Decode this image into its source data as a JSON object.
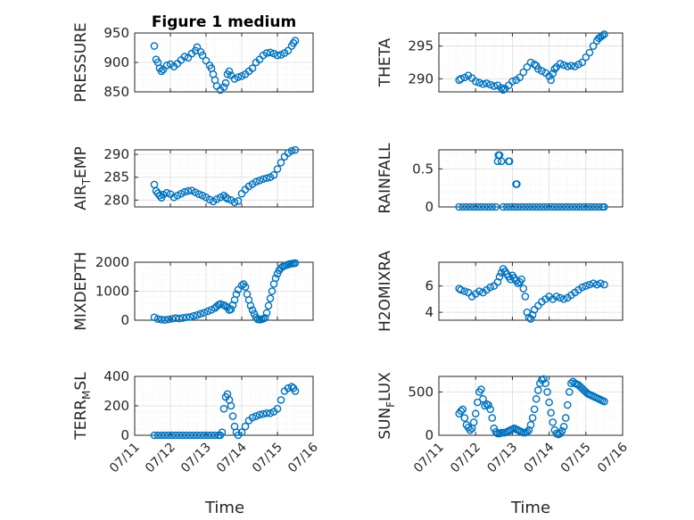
{
  "figure": {
    "title": "Figure 1 medium",
    "marker_color": "#0072BD",
    "x_tick_labels": [
      "07/11",
      "07/12",
      "07/13",
      "07/14",
      "07/15",
      "07/16"
    ],
    "xlabel": "Time"
  },
  "chart_data": [
    {
      "type": "scatter",
      "id": "pressure",
      "title": "Figure 1 medium",
      "ylabel": "PRESSURE",
      "ylim": [
        850,
        950
      ],
      "yticks": [
        850,
        900,
        950
      ],
      "xlim": [
        "07/11",
        "07/16"
      ],
      "grid": true,
      "series": [
        {
          "x": [
            11.55,
            11.6,
            11.65,
            11.7,
            11.75,
            11.8,
            11.9,
            12.0,
            12.1,
            12.2,
            12.3,
            12.4,
            12.5,
            12.6,
            12.7,
            12.75,
            12.85,
            12.9,
            13.0,
            13.1,
            13.15,
            13.2,
            13.25,
            13.3,
            13.4,
            13.5,
            13.55,
            13.6,
            13.65,
            13.7,
            13.8,
            13.9,
            14.0,
            14.1,
            14.2,
            14.3,
            14.4,
            14.5,
            14.6,
            14.7,
            14.8,
            14.9,
            15.0,
            15.1,
            15.2,
            15.3,
            15.4,
            15.45,
            15.5
          ],
          "y": [
            928,
            905,
            900,
            890,
            885,
            888,
            895,
            897,
            893,
            898,
            904,
            910,
            908,
            915,
            920,
            926,
            918,
            912,
            903,
            895,
            890,
            880,
            870,
            860,
            853,
            858,
            865,
            880,
            885,
            878,
            872,
            875,
            877,
            880,
            885,
            890,
            900,
            905,
            912,
            916,
            917,
            915,
            912,
            913,
            916,
            920,
            928,
            933,
            937
          ]
        }
      ]
    },
    {
      "type": "scatter",
      "id": "theta",
      "ylabel": "THETA",
      "ylim": [
        288,
        297
      ],
      "yticks": [
        290,
        295
      ],
      "xlim": [
        "07/11",
        "07/16"
      ],
      "grid": true,
      "series": [
        {
          "x": [
            11.55,
            11.6,
            11.7,
            11.8,
            11.9,
            12.0,
            12.1,
            12.2,
            12.3,
            12.4,
            12.5,
            12.6,
            12.7,
            12.75,
            12.8,
            12.9,
            13.0,
            13.1,
            13.2,
            13.3,
            13.4,
            13.5,
            13.6,
            13.65,
            13.7,
            13.8,
            13.9,
            14.0,
            14.05,
            14.1,
            14.15,
            14.2,
            14.3,
            14.4,
            14.5,
            14.6,
            14.7,
            14.8,
            14.9,
            15.0,
            15.1,
            15.2,
            15.3,
            15.35,
            15.4,
            15.45,
            15.5
          ],
          "y": [
            289.8,
            290.0,
            290.2,
            290.5,
            290.1,
            289.6,
            289.4,
            289.2,
            289.3,
            289.1,
            288.9,
            289.0,
            288.6,
            288.3,
            288.5,
            289.0,
            289.6,
            289.8,
            290.2,
            291.0,
            291.8,
            292.5,
            292.2,
            292.0,
            291.5,
            291.2,
            290.9,
            290.4,
            289.8,
            290.8,
            291.5,
            291.8,
            292.3,
            292.1,
            291.9,
            292.0,
            291.9,
            292.2,
            292.5,
            293.3,
            294.0,
            295.0,
            295.8,
            296.2,
            296.4,
            296.6,
            296.8
          ]
        }
      ]
    },
    {
      "type": "scatter",
      "id": "air_temp",
      "ylabel": "AIR_TEMP",
      "ylim": [
        278.5,
        291
      ],
      "yticks": [
        280,
        285,
        290
      ],
      "xlim": [
        "07/11",
        "07/16"
      ],
      "grid": true,
      "series": [
        {
          "x": [
            11.55,
            11.6,
            11.65,
            11.7,
            11.75,
            11.8,
            11.9,
            12.0,
            12.1,
            12.2,
            12.3,
            12.4,
            12.5,
            12.6,
            12.7,
            12.8,
            12.9,
            13.0,
            13.1,
            13.2,
            13.3,
            13.4,
            13.5,
            13.55,
            13.6,
            13.7,
            13.8,
            13.9,
            14.0,
            14.1,
            14.2,
            14.3,
            14.4,
            14.5,
            14.6,
            14.7,
            14.8,
            14.9,
            15.0,
            15.1,
            15.2,
            15.3,
            15.4,
            15.5
          ],
          "y": [
            283.4,
            282.0,
            281.5,
            281.0,
            280.5,
            281.2,
            281.6,
            281.3,
            280.6,
            281.0,
            281.4,
            281.8,
            282.0,
            282.1,
            281.7,
            281.3,
            281.0,
            280.6,
            280.1,
            279.7,
            280.2,
            280.6,
            281.0,
            280.6,
            280.3,
            280.0,
            279.5,
            279.8,
            281.4,
            282.3,
            283.0,
            283.5,
            284.0,
            284.3,
            284.6,
            284.8,
            285.0,
            285.5,
            286.8,
            288.2,
            289.5,
            290.3,
            290.8,
            291.0
          ]
        }
      ]
    },
    {
      "type": "scatter",
      "id": "rainfall",
      "ylabel": "RAINFALL",
      "ylim": [
        0,
        0.75
      ],
      "yticks": [
        0,
        0.5
      ],
      "xlim": [
        "07/11",
        "07/16"
      ],
      "grid": true,
      "series": [
        {
          "x": [
            11.55,
            11.65,
            11.75,
            11.85,
            11.95,
            12.05,
            12.15,
            12.25,
            12.35,
            12.45,
            12.55,
            12.6,
            12.62,
            12.65,
            12.7,
            12.75,
            12.85,
            12.9,
            12.92,
            12.95,
            13.05,
            13.1,
            13.12,
            13.15,
            13.25,
            13.35,
            13.45,
            13.55,
            13.65,
            13.75,
            13.85,
            13.95,
            14.05,
            14.15,
            14.25,
            14.35,
            14.45,
            14.55,
            14.65,
            14.75,
            14.85,
            14.95,
            15.05,
            15.15,
            15.25,
            15.35,
            15.45,
            15.5
          ],
          "y": [
            0,
            0,
            0,
            0,
            0,
            0,
            0,
            0,
            0,
            0,
            0,
            0.6,
            0.68,
            0.68,
            0.6,
            0,
            0,
            0.6,
            0.6,
            0,
            0,
            0.3,
            0.3,
            0,
            0,
            0,
            0,
            0,
            0,
            0,
            0,
            0,
            0,
            0,
            0,
            0,
            0,
            0,
            0,
            0,
            0,
            0,
            0,
            0,
            0,
            0,
            0,
            0
          ]
        }
      ]
    },
    {
      "type": "scatter",
      "id": "mixdepth",
      "ylabel": "MIXDEPTH",
      "ylim": [
        0,
        2000
      ],
      "yticks": [
        0,
        1000,
        2000
      ],
      "xlim": [
        "07/11",
        "07/16"
      ],
      "grid": true,
      "series": [
        {
          "x": [
            11.55,
            11.65,
            11.75,
            11.85,
            11.95,
            12.05,
            12.15,
            12.25,
            12.35,
            12.45,
            12.55,
            12.65,
            12.75,
            12.85,
            12.95,
            13.05,
            13.15,
            13.25,
            13.3,
            13.35,
            13.4,
            13.5,
            13.55,
            13.6,
            13.65,
            13.7,
            13.75,
            13.8,
            13.85,
            13.9,
            14.0,
            14.05,
            14.1,
            14.15,
            14.2,
            14.25,
            14.3,
            14.35,
            14.4,
            14.45,
            14.5,
            14.55,
            14.6,
            14.65,
            14.7,
            14.75,
            14.8,
            14.85,
            14.9,
            14.95,
            15.0,
            15.05,
            15.1,
            15.15,
            15.2,
            15.25,
            15.3,
            15.35,
            15.4,
            15.45,
            15.5
          ],
          "y": [
            100,
            40,
            20,
            10,
            30,
            50,
            70,
            60,
            80,
            100,
            110,
            150,
            180,
            220,
            260,
            310,
            360,
            420,
            480,
            530,
            560,
            520,
            480,
            450,
            350,
            380,
            520,
            700,
            900,
            1050,
            1200,
            1250,
            1150,
            900,
            700,
            500,
            350,
            220,
            100,
            30,
            20,
            30,
            50,
            80,
            250,
            500,
            750,
            1000,
            1250,
            1450,
            1600,
            1720,
            1800,
            1850,
            1880,
            1900,
            1920,
            1940,
            1950,
            1960,
            1970
          ]
        }
      ]
    },
    {
      "type": "scatter",
      "id": "h2omixra",
      "ylabel": "H2OMIXRA",
      "ylim": [
        3.4,
        7.8
      ],
      "yticks": [
        4,
        6
      ],
      "xlim": [
        "07/11",
        "07/16"
      ],
      "grid": true,
      "series": [
        {
          "x": [
            11.55,
            11.6,
            11.7,
            11.8,
            11.9,
            12.0,
            12.1,
            12.2,
            12.3,
            12.4,
            12.5,
            12.6,
            12.65,
            12.7,
            12.75,
            12.8,
            12.85,
            12.9,
            12.95,
            13.0,
            13.05,
            13.1,
            13.15,
            13.2,
            13.25,
            13.3,
            13.35,
            13.4,
            13.45,
            13.5,
            13.55,
            13.6,
            13.7,
            13.8,
            13.9,
            14.0,
            14.1,
            14.2,
            14.3,
            14.4,
            14.5,
            14.6,
            14.7,
            14.8,
            14.9,
            15.0,
            15.1,
            15.2,
            15.3,
            15.4,
            15.5
          ],
          "y": [
            5.8,
            5.7,
            5.6,
            5.5,
            5.2,
            5.4,
            5.6,
            5.5,
            5.7,
            5.9,
            6.0,
            6.3,
            6.7,
            7.0,
            7.3,
            7.1,
            6.9,
            6.7,
            6.5,
            6.8,
            6.6,
            6.4,
            6.2,
            6.3,
            6.5,
            5.8,
            5.2,
            4.0,
            3.6,
            3.5,
            3.8,
            4.2,
            4.5,
            4.8,
            5.0,
            5.2,
            5.0,
            5.2,
            5.1,
            5.0,
            5.1,
            5.3,
            5.5,
            5.7,
            5.9,
            6.0,
            6.1,
            6.2,
            6.1,
            6.2,
            6.1
          ]
        }
      ]
    },
    {
      "type": "scatter",
      "id": "terr_msl",
      "ylabel": "TERR_MSL",
      "ylim": [
        0,
        400
      ],
      "yticks": [
        0,
        200,
        400
      ],
      "xlim": [
        "07/11",
        "07/16"
      ],
      "grid": true,
      "series": [
        {
          "x": [
            11.55,
            11.65,
            11.75,
            11.85,
            11.95,
            12.05,
            12.15,
            12.25,
            12.35,
            12.45,
            12.55,
            12.65,
            12.75,
            12.85,
            12.95,
            13.05,
            13.15,
            13.25,
            13.35,
            13.4,
            13.45,
            13.5,
            13.55,
            13.6,
            13.65,
            13.7,
            13.75,
            13.8,
            13.85,
            13.9,
            14.0,
            14.1,
            14.2,
            14.3,
            14.4,
            14.5,
            14.6,
            14.7,
            14.8,
            14.9,
            15.0,
            15.1,
            15.2,
            15.3,
            15.4,
            15.45,
            15.5
          ],
          "y": [
            0,
            0,
            0,
            0,
            0,
            0,
            0,
            0,
            0,
            0,
            0,
            0,
            0,
            0,
            0,
            0,
            0,
            0,
            0,
            0,
            20,
            180,
            260,
            280,
            240,
            200,
            130,
            60,
            20,
            0,
            20,
            60,
            100,
            120,
            130,
            140,
            145,
            150,
            150,
            160,
            180,
            240,
            300,
            320,
            330,
            320,
            300
          ]
        }
      ]
    },
    {
      "type": "scatter",
      "id": "sun_flux",
      "ylabel": "SUN_FLUX",
      "ylim": [
        0,
        680
      ],
      "yticks": [
        0,
        500
      ],
      "xlim": [
        "07/11",
        "07/16"
      ],
      "grid": true,
      "series": [
        {
          "x": [
            11.55,
            11.6,
            11.65,
            11.7,
            11.75,
            11.8,
            11.85,
            11.9,
            11.95,
            12.0,
            12.05,
            12.1,
            12.15,
            12.2,
            12.25,
            12.3,
            12.35,
            12.4,
            12.45,
            12.5,
            12.55,
            12.6,
            12.65,
            12.7,
            12.75,
            12.8,
            12.85,
            12.9,
            12.95,
            13.0,
            13.05,
            13.1,
            13.15,
            13.2,
            13.25,
            13.3,
            13.35,
            13.4,
            13.45,
            13.5,
            13.55,
            13.6,
            13.65,
            13.7,
            13.75,
            13.8,
            13.85,
            13.9,
            13.95,
            14.0,
            14.05,
            14.1,
            14.15,
            14.2,
            14.25,
            14.3,
            14.35,
            14.4,
            14.45,
            14.5,
            14.55,
            14.6,
            14.65,
            14.7,
            14.75,
            14.8,
            14.85,
            14.9,
            14.95,
            15.0,
            15.05,
            15.1,
            15.15,
            15.2,
            15.25,
            15.3,
            15.35,
            15.4,
            15.45,
            15.5
          ],
          "y": [
            250,
            280,
            300,
            200,
            120,
            90,
            60,
            80,
            150,
            250,
            380,
            500,
            530,
            420,
            340,
            360,
            350,
            300,
            200,
            80,
            40,
            20,
            20,
            30,
            30,
            30,
            40,
            50,
            60,
            70,
            80,
            70,
            60,
            50,
            40,
            30,
            30,
            40,
            60,
            120,
            200,
            300,
            420,
            520,
            600,
            640,
            650,
            600,
            500,
            380,
            260,
            150,
            60,
            20,
            10,
            20,
            50,
            100,
            200,
            350,
            500,
            600,
            620,
            600,
            590,
            580,
            560,
            540,
            520,
            500,
            480,
            470,
            460,
            450,
            440,
            430,
            420,
            410,
            400,
            390
          ]
        }
      ]
    }
  ]
}
